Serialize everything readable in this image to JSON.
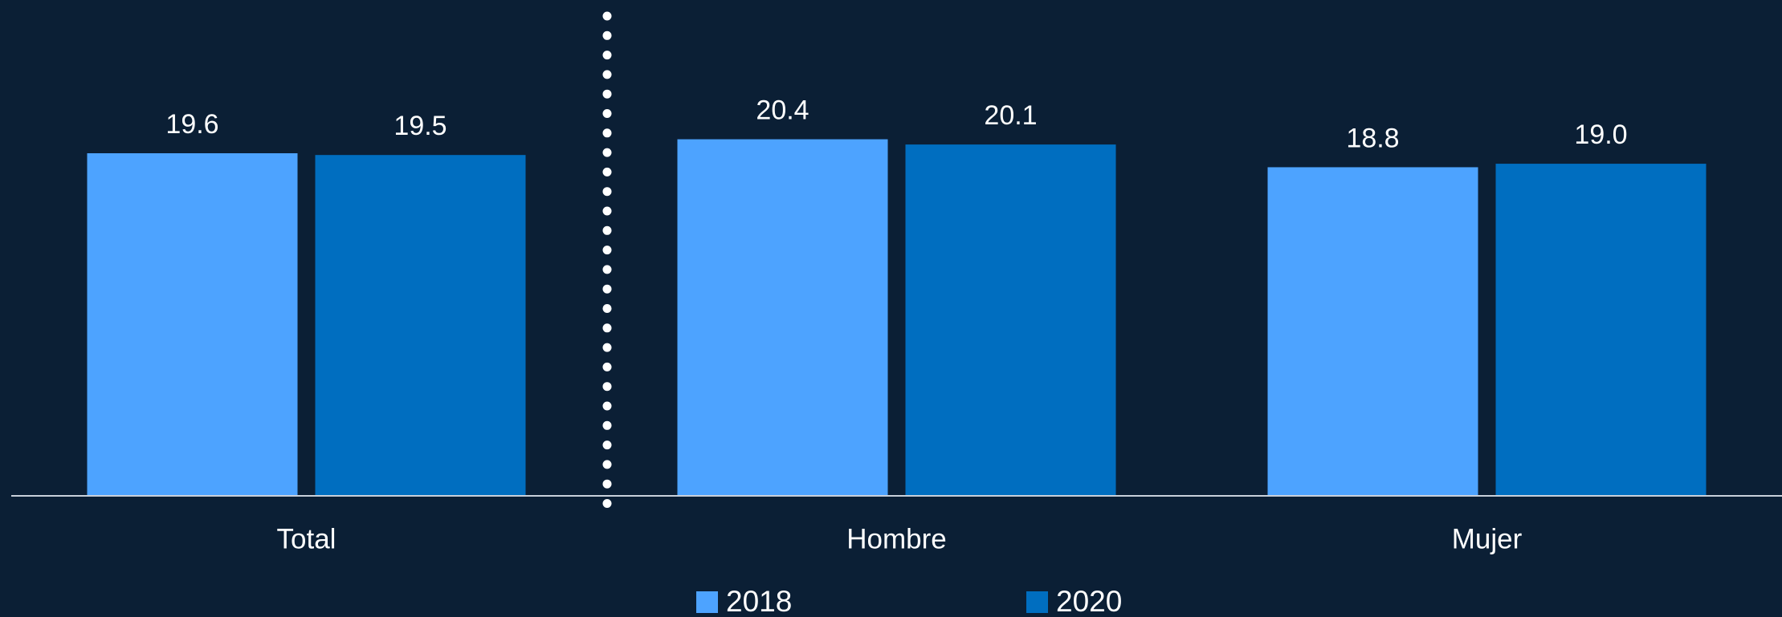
{
  "chart_data": {
    "type": "bar",
    "categories": [
      "Total",
      "Hombre",
      "Mujer"
    ],
    "series": [
      {
        "name": "2018",
        "color": "#4da3ff",
        "values": [
          19.6,
          20.4,
          18.8
        ],
        "value_labels": [
          "19.6",
          "20.4",
          "18.8"
        ]
      },
      {
        "name": "2020",
        "color": "#006ec0",
        "values": [
          19.5,
          20.1,
          19.0
        ],
        "value_labels": [
          "19.5",
          "20.1",
          "19.0"
        ]
      }
    ],
    "ylim": [
      0,
      28
    ],
    "legend": "bottom"
  }
}
